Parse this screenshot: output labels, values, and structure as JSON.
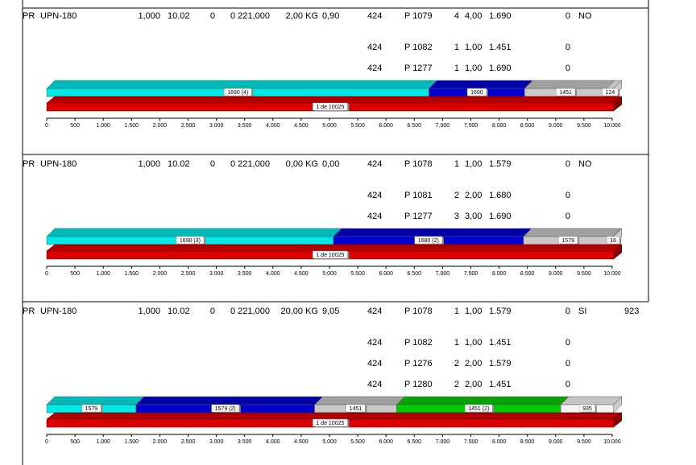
{
  "axis": {
    "lim": [
      0,
      10000
    ],
    "ticks": [
      0,
      500,
      {
        "value": 1000,
        "label": "1.000"
      },
      {
        "value": 1500,
        "label": "1.500"
      },
      {
        "value": 2000,
        "label": "2.000"
      },
      {
        "value": 2500,
        "label": "2.500"
      },
      {
        "value": 3000,
        "label": "3.000"
      },
      {
        "value": 3500,
        "label": "3.500"
      },
      {
        "value": 4000,
        "label": "4.000"
      },
      {
        "value": 4500,
        "label": "4.500"
      },
      {
        "value": 5000,
        "label": "5.000"
      },
      {
        "value": 5500,
        "label": "5.500"
      },
      {
        "value": 6000,
        "label": "6.000"
      },
      {
        "value": 6500,
        "label": "6.500"
      },
      {
        "value": 7000,
        "label": "7.000"
      },
      {
        "value": 7500,
        "label": "7.500"
      },
      {
        "value": 8000,
        "label": "8.000"
      },
      {
        "value": 8500,
        "label": "8.500"
      },
      {
        "value": 9000,
        "label": "9.000"
      },
      {
        "value": 9500,
        "label": "9.500"
      },
      {
        "value": 10000,
        "label": "10.000"
      }
    ]
  },
  "blocks": [
    {
      "header": [
        "PR",
        "UPN-180",
        "1,000",
        "10.02",
        "0",
        "0 221,000",
        "2,00 KG",
        "0,90",
        "424",
        "P 1079",
        "4",
        "4,00",
        "1.690",
        "0",
        "NO"
      ],
      "rows": [
        [
          "424",
          "P 1082",
          "1",
          "1,00",
          "1.451",
          "0"
        ],
        [
          "424",
          "P 1277",
          "1",
          "1,00",
          "1.690",
          "0"
        ]
      ],
      "segments": [
        {
          "label": "1690 (4)",
          "length": 6760,
          "color": "#00e8e8"
        },
        {
          "label": "1690",
          "length": 1690,
          "color": "#0000d0"
        },
        {
          "label": "1451",
          "length": 1451,
          "color": "#c8c8c8"
        },
        {
          "label": "124",
          "length": 124,
          "color": "#f4f4f4"
        }
      ],
      "stock": {
        "label": "1 de 10025",
        "length": 10025,
        "color": "#dd0000"
      }
    },
    {
      "header": [
        "PR",
        "UPN-180",
        "1,000",
        "10.02",
        "0",
        "0 221,000",
        "0,00 KG",
        "0,00",
        "424",
        "P 1078",
        "1",
        "1,00",
        "1.579",
        "0",
        "NO"
      ],
      "rows": [
        [
          "424",
          "P 1081",
          "2",
          "2,00",
          "1.680",
          "0"
        ],
        [
          "424",
          "P 1277",
          "3",
          "3,00",
          "1.690",
          "0"
        ]
      ],
      "segments": [
        {
          "label": "1690 (3)",
          "length": 5070,
          "color": "#00e8e8"
        },
        {
          "label": "1680 (2)",
          "length": 3360,
          "color": "#0000d0"
        },
        {
          "label": "1579",
          "length": 1579,
          "color": "#c8c8c8"
        },
        {
          "label": "16",
          "length": 16,
          "color": "#f4f4f4"
        }
      ],
      "stock": {
        "label": "1 de 10025",
        "length": 10025,
        "color": "#dd0000"
      }
    },
    {
      "header": [
        "PR",
        "UPN-180",
        "1,000",
        "10.02",
        "0",
        "0 221,000",
        "20,00 KG",
        "9,05",
        "424",
        "P 1078",
        "1",
        "1,00",
        "1.579",
        "0",
        "SI",
        "923"
      ],
      "rows": [
        [
          "424",
          "P 1082",
          "1",
          "1,00",
          "1.451",
          "0"
        ],
        [
          "424",
          "P 1276",
          "2",
          "2,00",
          "1.579",
          "0"
        ],
        [
          "424",
          "P 1280",
          "2",
          "2,00",
          "1.451",
          "0"
        ]
      ],
      "segments": [
        {
          "label": "1579",
          "length": 1579,
          "color": "#00e8e8"
        },
        {
          "label": "1579 (2)",
          "length": 3158,
          "color": "#0000d0"
        },
        {
          "label": "1451",
          "length": 1451,
          "color": "#c8c8c8"
        },
        {
          "label": "1451 (2)",
          "length": 2902,
          "color": "#00cc00"
        },
        {
          "label": "935",
          "length": 935,
          "color": "#f4f4f4"
        }
      ],
      "stock": {
        "label": "1 de 10025",
        "length": 10025,
        "color": "#dd0000"
      }
    }
  ]
}
